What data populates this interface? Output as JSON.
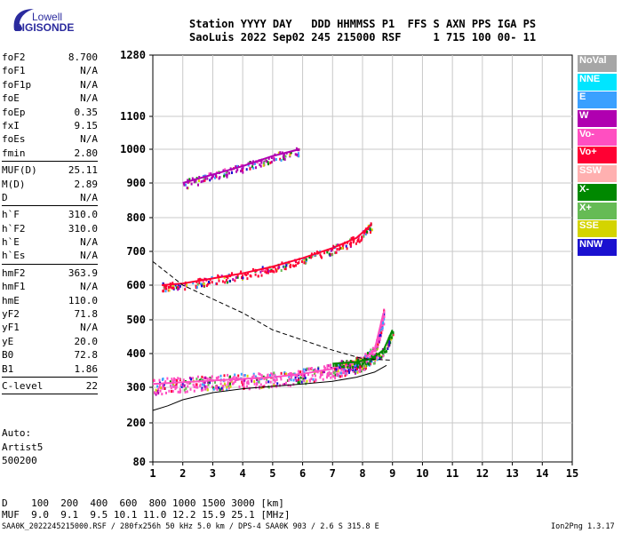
{
  "logo": {
    "brand": "Lowell",
    "name": "DIGISONDE"
  },
  "header": {
    "line1": "Station YYYY DAY   DDD HHMMSS P1  FFS S AXN PPS IGA PS",
    "line2": "SaoLuis 2022 Sep02 245 215000 RSF     1 715 100 00- 11"
  },
  "params": [
    {
      "label": "foF2",
      "value": "8.700"
    },
    {
      "label": "foF1",
      "value": "N/A"
    },
    {
      "label": "foF1p",
      "value": "N/A"
    },
    {
      "label": "foE",
      "value": "N/A"
    },
    {
      "label": "foEp",
      "value": "0.35"
    },
    {
      "label": "fxI",
      "value": "9.15"
    },
    {
      "label": "foEs",
      "value": "N/A"
    },
    {
      "label": "fmin",
      "value": "2.80"
    },
    {
      "sep": true
    },
    {
      "label": "MUF(D)",
      "value": "25.11"
    },
    {
      "label": "M(D)",
      "value": "2.89"
    },
    {
      "label": "D",
      "value": "N/A"
    },
    {
      "sep": true
    },
    {
      "label": "h`F",
      "value": "310.0"
    },
    {
      "label": "h`F2",
      "value": "310.0"
    },
    {
      "label": "h`E",
      "value": "N/A"
    },
    {
      "label": "h`Es",
      "value": "N/A"
    },
    {
      "sep": true
    },
    {
      "label": "hmF2",
      "value": "363.9"
    },
    {
      "label": "hmF1",
      "value": "N/A"
    },
    {
      "label": "hmE",
      "value": "110.0"
    },
    {
      "label": "yF2",
      "value": "71.8"
    },
    {
      "label": "yF1",
      "value": "N/A"
    },
    {
      "label": "yE",
      "value": "20.0"
    },
    {
      "label": "B0",
      "value": "72.8"
    },
    {
      "label": "B1",
      "value": "1.86"
    },
    {
      "sep": true
    },
    {
      "label": "C-level",
      "value": "22"
    },
    {
      "sep": true
    }
  ],
  "auto": [
    "Auto:",
    "Artist5",
    "500200"
  ],
  "bottom": {
    "d_row": "D    100  200  400  600  800 1000 1500 3000 [km]",
    "muf_row": "MUF  9.0  9.1  9.5 10.1 11.0 12.2 15.9 25.1 [MHz]",
    "footer_left": "SAA0K_2022245215000.RSF / 280fx256h 50 kHz 5.0 km / DPS-4 SAA0K 903 / 2.6 S 315.8 E",
    "footer_right": "Ion2Png 1.3.17"
  },
  "legend": [
    {
      "label": "NoVal",
      "color": "#a6a6a6"
    },
    {
      "label": "NNE",
      "color": "#00e5ff"
    },
    {
      "label": "E",
      "color": "#3aa0ff"
    },
    {
      "label": "W",
      "color": "#b000b0"
    },
    {
      "label": "Vo-",
      "color": "#ff4fc1"
    },
    {
      "label": "Vo+",
      "color": "#ff0033"
    },
    {
      "label": "SSW",
      "color": "#ffb0b0"
    },
    {
      "label": "X-",
      "color": "#008800"
    },
    {
      "label": "X+",
      "color": "#66bb55"
    },
    {
      "label": "SSE",
      "color": "#d4d400"
    },
    {
      "label": "NNW",
      "color": "#1a10d0"
    }
  ],
  "chart_data": {
    "type": "scatter",
    "xlim": [
      1,
      15
    ],
    "ylim": [
      80,
      1280
    ],
    "xticks": [
      1,
      2,
      3,
      4,
      5,
      6,
      7,
      8,
      9,
      10,
      11,
      12,
      13,
      14,
      15
    ],
    "yticks": [
      80,
      200,
      300,
      400,
      500,
      600,
      700,
      800,
      900,
      1000,
      1100,
      1280
    ],
    "grid": true,
    "y_scale": "nonlinear",
    "y_tick_pixels_note": "ticks unevenly spaced as printed",
    "traces": [
      {
        "name": "",
        "kind": "o-trace",
        "color": "#ff4fc1",
        "x": [
          1.0,
          2.0,
          3.0,
          4.0,
          5.0,
          6.0,
          7.0,
          7.5,
          8.0,
          8.4,
          8.7
        ],
        "y": [
          310,
          315,
          320,
          325,
          330,
          340,
          355,
          365,
          380,
          410,
          520
        ]
      },
      {
        "name": "",
        "kind": "o-trace-2hop",
        "color": "#ff0033",
        "x": [
          1.3,
          2.0,
          3.0,
          4.0,
          5.0,
          6.0,
          7.0,
          7.8,
          8.3
        ],
        "y": [
          600,
          605,
          620,
          635,
          655,
          680,
          710,
          740,
          780
        ]
      },
      {
        "name": "",
        "kind": "o-trace-3hop",
        "color": "#b000b0",
        "x": [
          2.0,
          3.0,
          4.0,
          5.0,
          5.9
        ],
        "y": [
          900,
          925,
          950,
          980,
          1000
        ]
      },
      {
        "name": "",
        "kind": "x-trace",
        "color": "#008800",
        "x": [
          7.0,
          7.8,
          8.3,
          8.7,
          9.0
        ],
        "y": [
          370,
          375,
          385,
          410,
          470
        ]
      }
    ],
    "model_profile": {
      "x": [
        1.0,
        1.5,
        2.0,
        3.0,
        4.0,
        5.0,
        6.0,
        7.0,
        7.8,
        8.4,
        8.8
      ],
      "y": [
        235,
        248,
        265,
        285,
        296,
        303,
        310,
        318,
        330,
        345,
        365
      ]
    },
    "muf_curve": {
      "x": [
        1.0,
        2.0,
        3.0,
        4.0,
        5.0,
        6.0,
        7.0,
        8.0,
        9.0
      ],
      "y": [
        670,
        600,
        560,
        520,
        470,
        440,
        410,
        385,
        380
      ]
    }
  }
}
